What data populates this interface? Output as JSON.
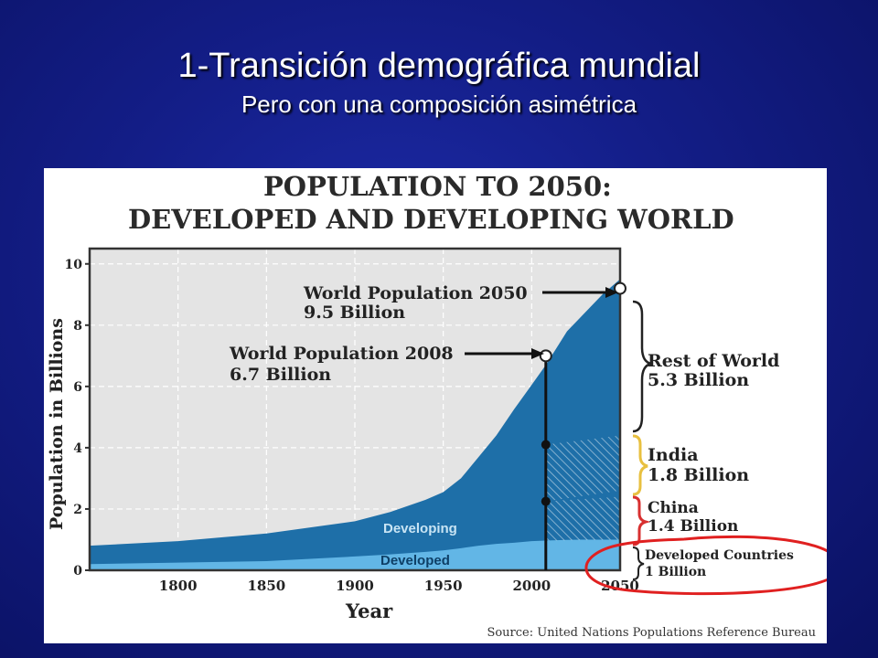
{
  "slide": {
    "title": "1-Transición demográfica mundial",
    "subtitle": "Pero con una composición asimétrica"
  },
  "colors": {
    "background": "#131d86",
    "developing": "#1e6fa8",
    "developed": "#62b6e6",
    "plot_bg": "#e4e4e4",
    "highlight_circle": "#e02020",
    "brace_india": "#e8c040",
    "brace_china": "#d83030"
  },
  "chart_data": {
    "type": "area",
    "title_line1": "POPULATION TO 2050:",
    "title_line2": "DEVELOPED AND DEVELOPING WORLD",
    "xlabel": "Year",
    "ylabel": "Population in Billions",
    "xlim": [
      1750,
      2050
    ],
    "ylim": [
      0,
      10.5
    ],
    "x_ticks": [
      "1800",
      "1850",
      "1900",
      "1950",
      "2000",
      "2050"
    ],
    "y_ticks": [
      "0",
      "2",
      "4",
      "6",
      "8",
      "10"
    ],
    "grid": true,
    "stacking": "stacked",
    "x": [
      1750,
      1800,
      1850,
      1900,
      1920,
      1940,
      1950,
      1960,
      1970,
      1980,
      1990,
      2000,
      2008,
      2020,
      2030,
      2040,
      2050
    ],
    "series": [
      {
        "name": "Developed",
        "values": [
          0.2,
          0.25,
          0.3,
          0.45,
          0.52,
          0.6,
          0.65,
          0.72,
          0.8,
          0.86,
          0.9,
          0.95,
          0.97,
          0.99,
          1.0,
          1.0,
          1.0
        ]
      },
      {
        "name": "Developing",
        "values": [
          0.6,
          0.7,
          0.9,
          1.15,
          1.38,
          1.7,
          1.9,
          2.28,
          2.9,
          3.54,
          4.35,
          5.1,
          5.73,
          6.81,
          7.4,
          8.0,
          8.5
        ]
      }
    ],
    "annotations": {
      "wp2050_line1": "World Population 2050",
      "wp2050_line2": "9.5 Billion",
      "wp2008_line1": "World Population 2008",
      "wp2008_line2": "6.7 Billion",
      "developing_label": "Developing",
      "developed_label": "Developed"
    },
    "markers": [
      {
        "x": 2008,
        "y": 7.0,
        "style": "open"
      },
      {
        "x": 2050,
        "y": 9.2,
        "style": "open"
      },
      {
        "x": 2008,
        "y": 4.1,
        "style": "filled"
      },
      {
        "x": 2008,
        "y": 2.25,
        "style": "filled"
      }
    ],
    "breakdown_2050": [
      {
        "line1": "Rest of World",
        "line2": "5.3 Billion"
      },
      {
        "line1": "India",
        "line2": "1.8 Billion"
      },
      {
        "line1": "China",
        "line2": "1.4 Billion"
      },
      {
        "line1": "Developed Countries",
        "line2": "1 Billion"
      }
    ],
    "source": "Source: United Nations Populations Reference Bureau"
  }
}
